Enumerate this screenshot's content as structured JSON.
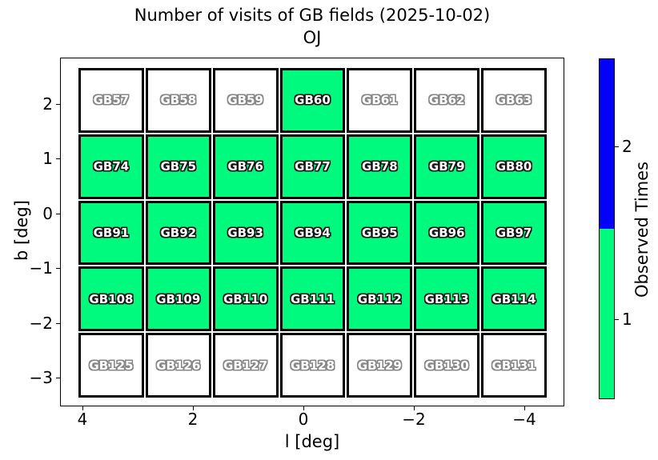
{
  "figure": {
    "title_line1": "Number of visits of GB fields (2025-10-02)",
    "title_line2": "OJ",
    "xlabel": "l [deg]",
    "ylabel": "b [deg]",
    "x_ticks": [
      "4",
      "2",
      "0",
      "−2",
      "−4"
    ],
    "y_ticks": [
      "2",
      "1",
      "0",
      "−1",
      "−2",
      "−3"
    ],
    "colorbar": {
      "label": "Observed Times",
      "tick_upper": "2",
      "tick_lower": "1"
    },
    "colors": {
      "observed_fill": "#00FA7D",
      "unobserved_fill": "#FFFFFF",
      "colorbar_1": "#00FA7D",
      "colorbar_2": "#0202FA",
      "cell_border": "#000000"
    }
  },
  "chart_data": {
    "type": "heatmap",
    "title": "Number of visits of GB fields (2025-10-02) OJ",
    "xlabel": "l [deg]",
    "ylabel": "b [deg]",
    "xlim": [
      4.4,
      -4.8
    ],
    "ylim": [
      -3.5,
      2.85
    ],
    "x_tick_values": [
      4,
      2,
      0,
      -2,
      -4
    ],
    "y_tick_values": [
      2,
      1,
      0,
      -1,
      -2,
      -3
    ],
    "cell_size_deg": 1.2,
    "colorbar": {
      "label": "Observed Times",
      "levels": [
        {
          "value": 1,
          "color": "#00FA7D"
        },
        {
          "value": 2,
          "color": "#0202FA"
        }
      ]
    },
    "rows": [
      {
        "b": 2.05,
        "fields": [
          {
            "name": "GB57",
            "visits": 0
          },
          {
            "name": "GB58",
            "visits": 0
          },
          {
            "name": "GB59",
            "visits": 0
          },
          {
            "name": "GB60",
            "visits": 1
          },
          {
            "name": "GB61",
            "visits": 0
          },
          {
            "name": "GB62",
            "visits": 0
          },
          {
            "name": "GB63",
            "visits": 0
          }
        ]
      },
      {
        "b": 0.85,
        "fields": [
          {
            "name": "GB74",
            "visits": 1
          },
          {
            "name": "GB75",
            "visits": 1
          },
          {
            "name": "GB76",
            "visits": 1
          },
          {
            "name": "GB77",
            "visits": 1
          },
          {
            "name": "GB78",
            "visits": 1
          },
          {
            "name": "GB79",
            "visits": 1
          },
          {
            "name": "GB80",
            "visits": 1
          }
        ]
      },
      {
        "b": -0.35,
        "fields": [
          {
            "name": "GB91",
            "visits": 1
          },
          {
            "name": "GB92",
            "visits": 1
          },
          {
            "name": "GB93",
            "visits": 1
          },
          {
            "name": "GB94",
            "visits": 1
          },
          {
            "name": "GB95",
            "visits": 1
          },
          {
            "name": "GB96",
            "visits": 1
          },
          {
            "name": "GB97",
            "visits": 1
          }
        ]
      },
      {
        "b": -1.55,
        "fields": [
          {
            "name": "GB108",
            "visits": 1
          },
          {
            "name": "GB109",
            "visits": 1
          },
          {
            "name": "GB110",
            "visits": 1
          },
          {
            "name": "GB111",
            "visits": 1
          },
          {
            "name": "GB112",
            "visits": 1
          },
          {
            "name": "GB113",
            "visits": 1
          },
          {
            "name": "GB114",
            "visits": 1
          }
        ]
      },
      {
        "b": -2.75,
        "fields": [
          {
            "name": "GB125",
            "visits": 0
          },
          {
            "name": "GB126",
            "visits": 0
          },
          {
            "name": "GB127",
            "visits": 0
          },
          {
            "name": "GB128",
            "visits": 0
          },
          {
            "name": "GB129",
            "visits": 0
          },
          {
            "name": "GB130",
            "visits": 0
          },
          {
            "name": "GB131",
            "visits": 0
          }
        ]
      }
    ]
  }
}
